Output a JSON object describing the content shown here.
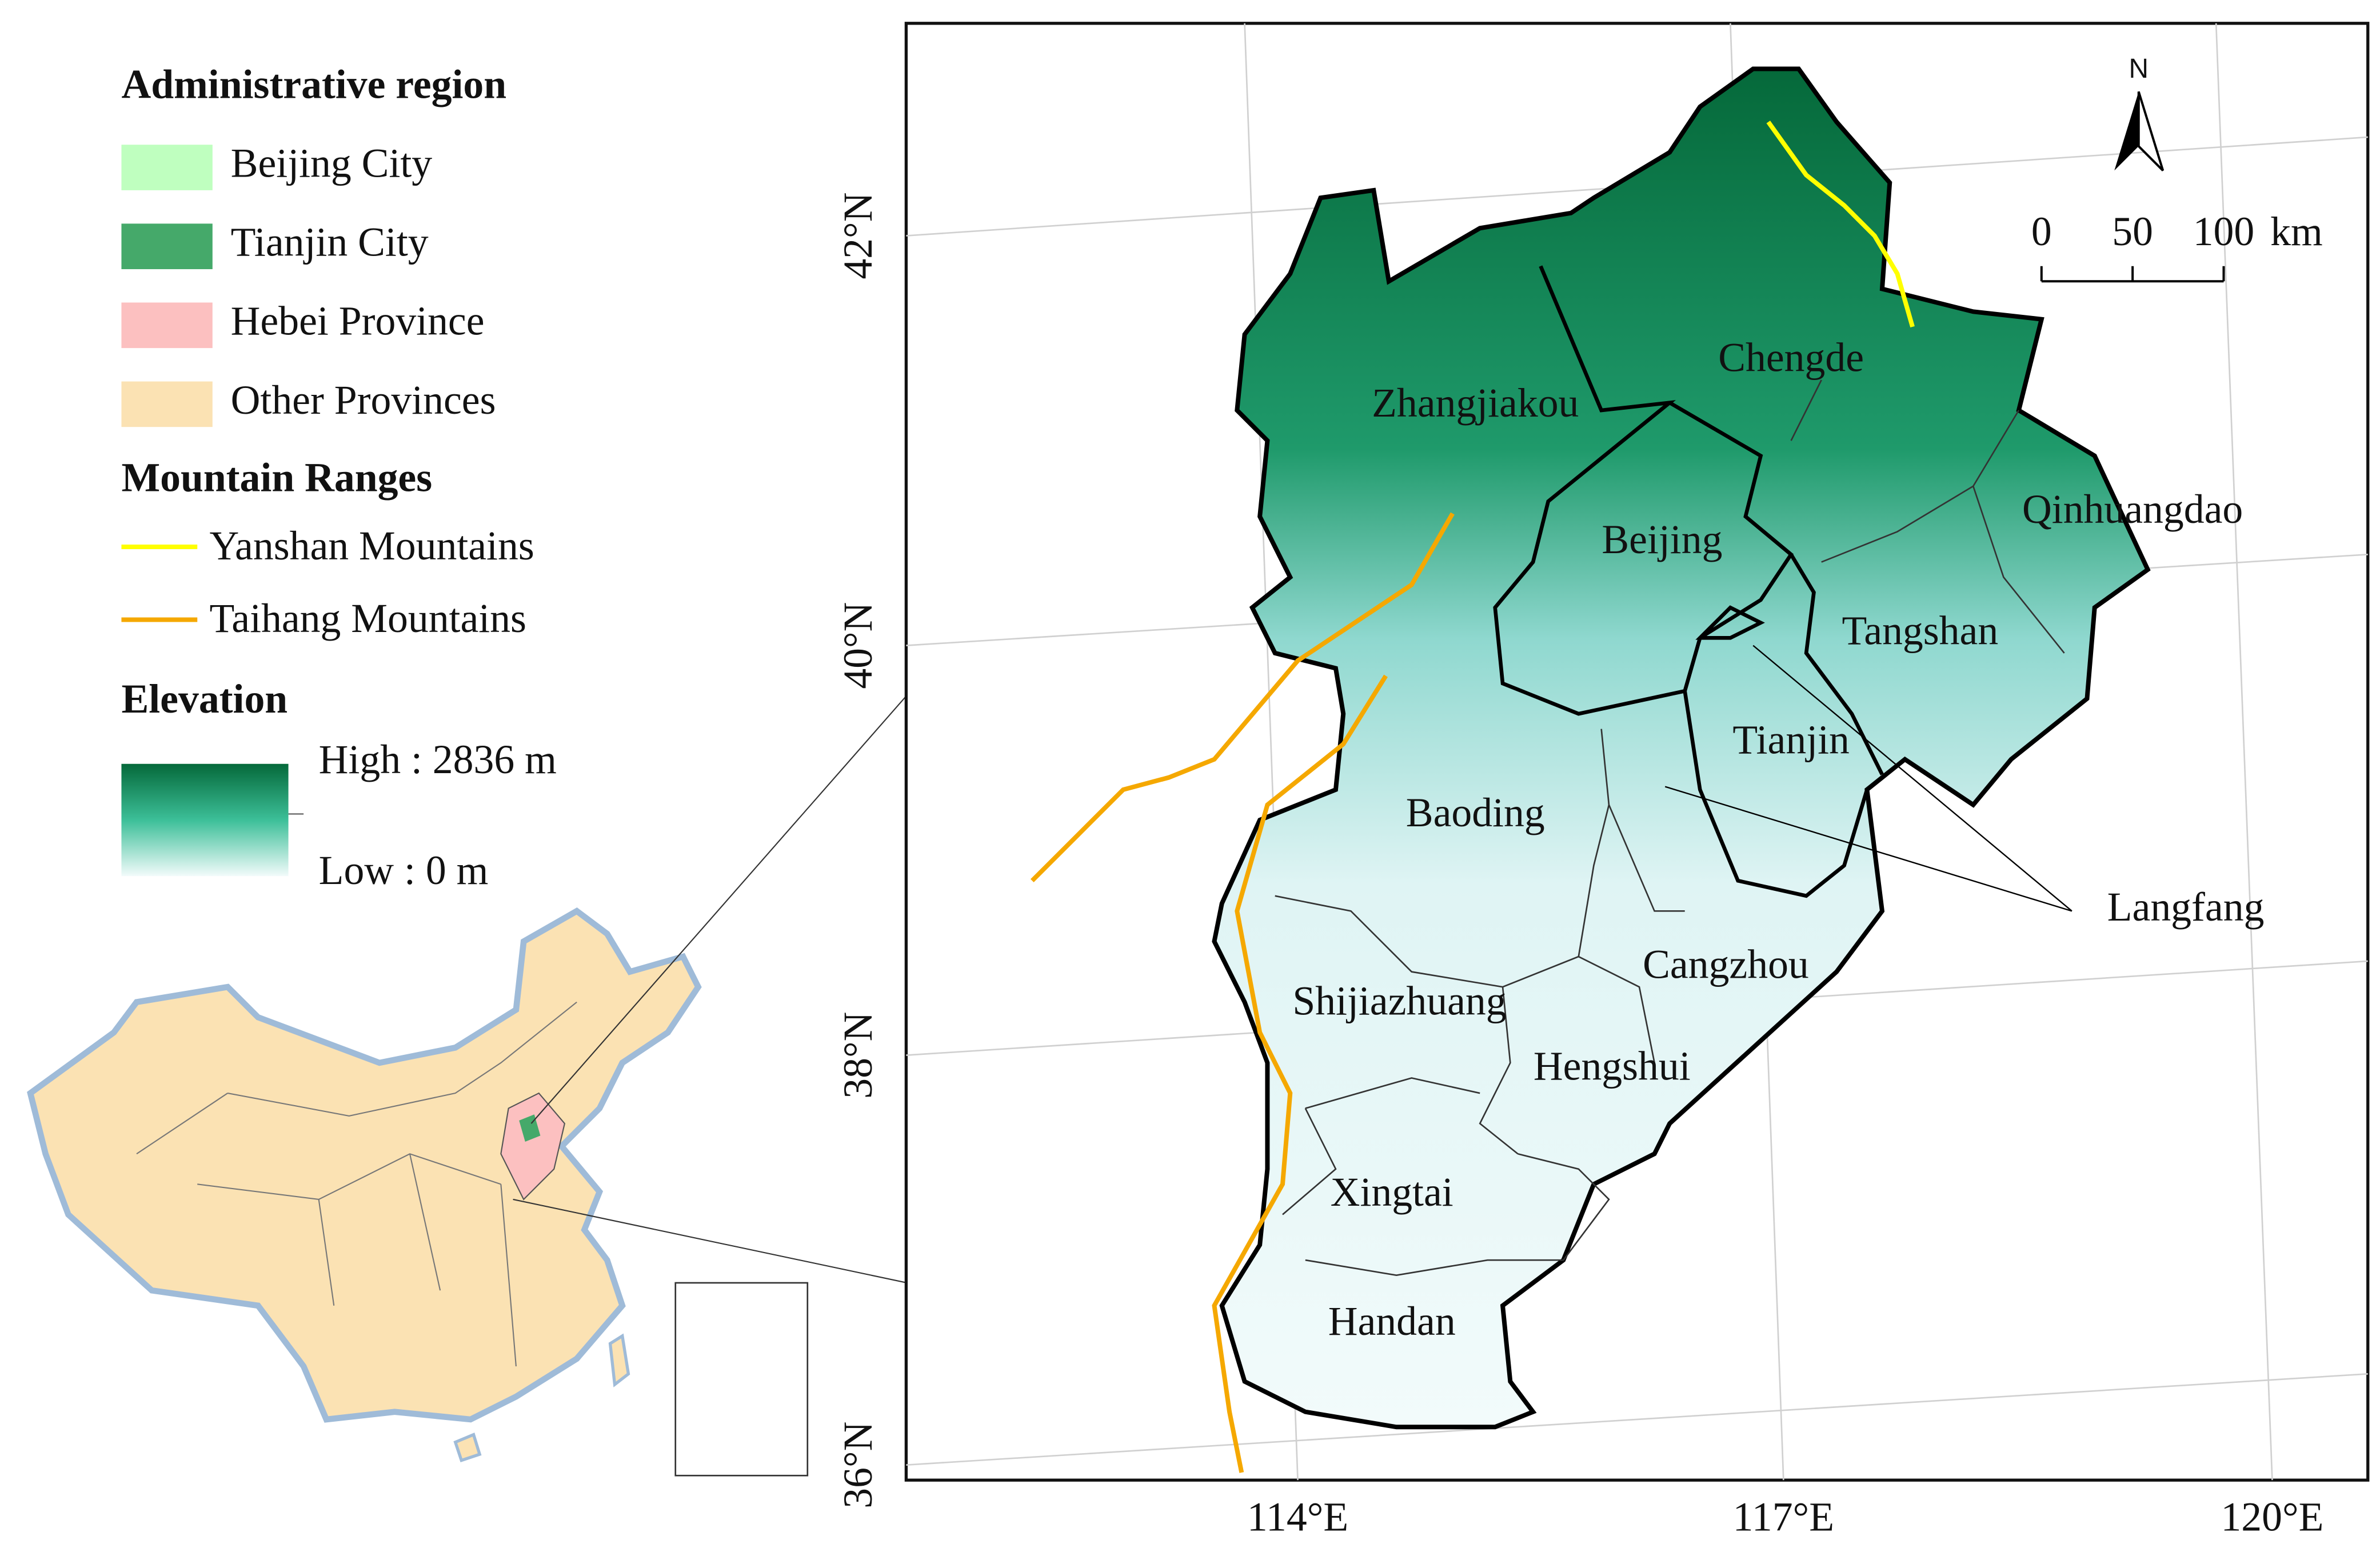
{
  "legend": {
    "admin_title": "Administrative region",
    "admin_items": [
      "Beijing City",
      "Tianjin City",
      "Hebei Province",
      "Other Provinces"
    ],
    "mountain_title": "Mountain Ranges",
    "mountain_items": [
      "Yanshan Mountains",
      "Taihang Mountains"
    ],
    "elevation_title": "Elevation",
    "elevation_high": "High : 2836 m",
    "elevation_low": "Low : 0 m"
  },
  "map": {
    "cities": [
      "Zhangjiakou",
      "Chengde",
      "Beijing",
      "Qinhuangdao",
      "Tangshan",
      "Tianjin",
      "Baoding",
      "Langfang",
      "Cangzhou",
      "Shijiazhuang",
      "Hengshui",
      "Xingtai",
      "Handan"
    ],
    "lat_labels": [
      "42°N",
      "40°N",
      "38°N",
      "36°N"
    ],
    "lon_labels": [
      "114°E",
      "117°E",
      "120°E"
    ],
    "north": "N",
    "scale_labels": [
      "0",
      "50",
      "100",
      "km"
    ]
  }
}
